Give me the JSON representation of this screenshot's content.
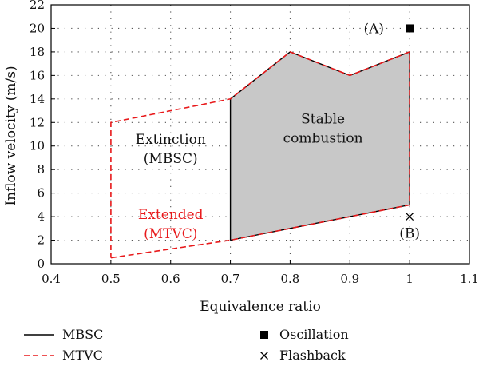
{
  "chart_data": {
    "type": "line",
    "xlabel": "Equivalence ratio",
    "ylabel": "Inflow velocity (m/s)",
    "xlim": [
      0.4,
      1.1
    ],
    "ylim": [
      0,
      22
    ],
    "x_ticks": [
      0.4,
      0.5,
      0.6,
      0.7,
      0.8,
      0.9,
      1.0,
      1.1
    ],
    "x_tick_labels": [
      "0.4",
      "0.5",
      "0.6",
      "0.7",
      "0.8",
      "0.9",
      "1",
      "1.1"
    ],
    "y_ticks": [
      0,
      2,
      4,
      6,
      8,
      10,
      12,
      14,
      16,
      18,
      20,
      22
    ],
    "y_tick_labels": [
      "0",
      "2",
      "4",
      "6",
      "8",
      "10",
      "12",
      "14",
      "16",
      "18",
      "20",
      "22"
    ],
    "grid": true,
    "legend_placement": "bottom",
    "series": [
      {
        "name": "MBSC",
        "style": "solid",
        "color": "#000000",
        "fill": "#c8c8c8",
        "points": [
          [
            0.7,
            2
          ],
          [
            0.8,
            3
          ],
          [
            0.9,
            4
          ],
          [
            1.0,
            5
          ],
          [
            1.0,
            18
          ],
          [
            0.9,
            16
          ],
          [
            0.8,
            18
          ],
          [
            0.7,
            14
          ],
          [
            0.7,
            2
          ]
        ]
      },
      {
        "name": "MTVC",
        "style": "dashed",
        "color": "#e8191b",
        "points": [
          [
            0.5,
            0.5
          ],
          [
            0.7,
            2
          ],
          [
            0.8,
            3
          ],
          [
            0.9,
            4
          ],
          [
            1.0,
            5
          ],
          [
            1.0,
            18
          ],
          [
            0.9,
            16
          ],
          [
            0.8,
            18
          ],
          [
            0.7,
            14
          ],
          [
            0.5,
            12
          ],
          [
            0.5,
            0.5
          ]
        ]
      },
      {
        "name": "Oscillation",
        "marker": "square",
        "color": "#000000",
        "points": [
          [
            1.0,
            20
          ]
        ]
      },
      {
        "name": "Flashback",
        "marker": "x",
        "color": "#000000",
        "points": [
          [
            1.0,
            4
          ]
        ]
      }
    ],
    "annotations": [
      {
        "id": "stable",
        "lines": [
          "Stable",
          "combustion"
        ],
        "x": 0.855,
        "y": 11.9,
        "color": "#111111"
      },
      {
        "id": "extinction",
        "lines": [
          "Extinction",
          "(MBSC)"
        ],
        "x": 0.6,
        "y": 10.2,
        "color": "#111111"
      },
      {
        "id": "extended",
        "lines": [
          "Extended",
          "(MTVC)"
        ],
        "x": 0.6,
        "y": 3.8,
        "color": "#e8191b"
      },
      {
        "id": "label-a",
        "lines": [
          "(A)"
        ],
        "x": 0.94,
        "y": 19.6,
        "color": "#111111"
      },
      {
        "id": "label-b",
        "lines": [
          "(B)"
        ],
        "x": 1.0,
        "y": 2.2,
        "color": "#111111"
      }
    ]
  }
}
